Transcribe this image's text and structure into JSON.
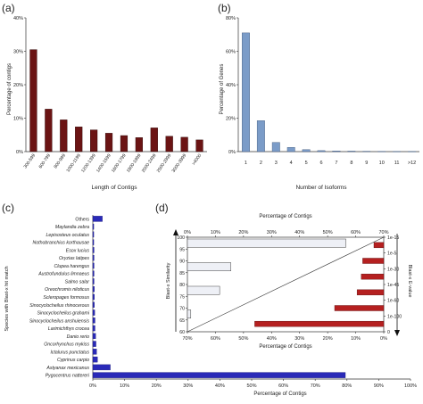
{
  "chart_data": [
    {
      "panel_label": "(a)",
      "type": "bar",
      "ylabel": "Percentage of contigs",
      "xlabel": "Length of Contigs",
      "ylim": [
        0,
        40
      ],
      "yticks": [
        "0%",
        "10%",
        "20%",
        "30%",
        "40%"
      ],
      "categories": [
        "300-599",
        "600-799",
        "800-999",
        "1000-1199",
        "1200-1399",
        "1400-1599",
        "1600-1799",
        "1800-1999",
        "2000-2499",
        "2500-2999",
        "3000-3999",
        ">4000"
      ],
      "values": [
        30.5,
        12.7,
        9.5,
        7.4,
        6.5,
        5.5,
        4.8,
        4.2,
        7.1,
        4.6,
        4.3,
        3.5
      ],
      "color": "#6b1414"
    },
    {
      "panel_label": "(b)",
      "type": "bar",
      "ylabel": "Percentage of Genes",
      "xlabel": "Number of Isoforms",
      "ylim": [
        0,
        80
      ],
      "yticks": [
        "0%",
        "20%",
        "40%",
        "60%",
        "80%"
      ],
      "categories": [
        "1",
        "2",
        "3",
        "4",
        "5",
        "6",
        "7",
        "8",
        "9",
        "10",
        "11",
        ">12"
      ],
      "values": [
        71,
        18.5,
        5.5,
        2.5,
        1.2,
        0.6,
        0.4,
        0.3,
        0.2,
        0.15,
        0.1,
        0.1
      ],
      "color": "#7b9cc8"
    },
    {
      "panel_label": "(c)",
      "type": "bar",
      "orientation": "horizontal",
      "ylabel": "Species with Blast-x hit match",
      "xlabel": "Percentage of Contigs",
      "xlim": [
        0,
        100
      ],
      "xticks": [
        "0%",
        "10%",
        "20%",
        "30%",
        "40%",
        "50%",
        "60%",
        "70%",
        "80%",
        "90%",
        "100%"
      ],
      "categories": [
        "Others",
        "Maylandia zebra",
        "Lepisosteus oculatus",
        "Nothobranchius korthausae",
        "Esox lucius",
        "Oryzias latipes",
        "Clupea harengus",
        "Austrofundulus limnaeus",
        "Salmo salar",
        "Oreochromis niloticus",
        "Scleropages formosus",
        "Sinocyclocheilus rhinocerous",
        "Sinocyclocheilus grahami",
        "Sinocyclocheilus anshuiensis",
        "Larimichthys crocea",
        "Danio rerio",
        "Oncorhynchus mykiss",
        "Ictalurus punctatus",
        "Cyprinus carpio",
        "Astyanax mexicanus",
        "Pygocentrus nattereri"
      ],
      "values": [
        3.0,
        0.3,
        0.3,
        0.3,
        0.4,
        0.4,
        0.4,
        0.4,
        0.4,
        0.5,
        0.5,
        0.5,
        0.6,
        0.7,
        0.7,
        0.9,
        1.0,
        1.2,
        1.5,
        5.5,
        79.5
      ],
      "color": "#2a2ab8"
    },
    {
      "panel_label": "(d)",
      "type": "bar",
      "orientation": "horizontal",
      "xlabel_top": "Percentage of Contigs",
      "xlabel_bottom": "Percentage of Contigs",
      "ylabel_left": "Blast-x Similarity",
      "ylabel_right": "Blast-x E-value",
      "xticks": [
        "0%",
        "10%",
        "20%",
        "30%",
        "40%",
        "50%",
        "60%",
        "70%"
      ],
      "xticks_bottom": [
        "70%",
        "60%",
        "50%",
        "40%",
        "30%",
        "20%",
        "10%",
        "0%"
      ],
      "similarity_ticks": [
        "100",
        "95",
        "90",
        "85",
        "80",
        "75",
        "70",
        "65",
        "60"
      ],
      "evalue_ticks": [
        "1e-15",
        "1e-5",
        "1e-30",
        "1e-45",
        "1e-60",
        "1e-100",
        "0"
      ],
      "series": [
        {
          "name": "Blast-x Similarity",
          "categories": [
            "100-95",
            "95-90",
            "90-85",
            "85-80",
            "80-75",
            "75-70",
            "70-65",
            "65-60"
          ],
          "values": [
            56.5,
            0,
            15.5,
            0,
            11.5,
            0,
            1.2,
            0
          ],
          "color": "#eef0f6"
        },
        {
          "name": "Blast-x E-value",
          "categories": [
            "1e-15",
            "1e-5",
            "1e-30",
            "1e-45",
            "1e-60",
            "1e-100",
            "0"
          ],
          "values": [
            3.5,
            7.5,
            8.0,
            9.5,
            17.5,
            46.0,
            0
          ],
          "color": "#b52020"
        }
      ]
    }
  ]
}
